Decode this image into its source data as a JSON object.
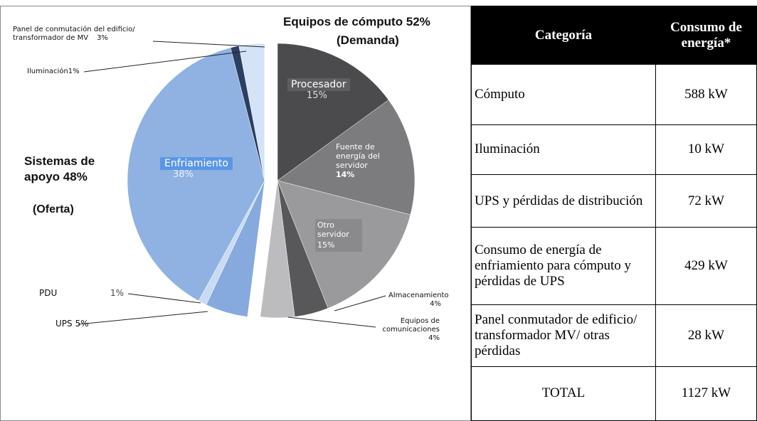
{
  "chart_data": {
    "type": "pie",
    "groups": [
      {
        "label": "Equipos de cómputo 52%",
        "sublabel": "(Demanda)"
      },
      {
        "label": "Sistemas de apoyo 48%",
        "sublabel": "(Oferta)"
      }
    ],
    "categories": [
      "Procesador",
      "Fuente de energía del servidor",
      "Otro servidor",
      "Almacenamiento",
      "Equipos de comunicaciones",
      "UPS",
      "PDU",
      "Enfriamiento",
      "Iluminación",
      "Panel de conmutación del edificio/ transformador de MV"
    ],
    "values": [
      15,
      14,
      15,
      4,
      4,
      5,
      1,
      38,
      1,
      3
    ],
    "value_labels": [
      "15%",
      "14%",
      "15%",
      "4%",
      "4%",
      "5%",
      "1%",
      "38%",
      "1%",
      "3%"
    ],
    "colors": [
      "#4b4b4d",
      "#7c7c7e",
      "#9a9a9c",
      "#58585a",
      "#bcbcbe",
      "#86a9de",
      "#c9daf2",
      "#8fb2e3",
      "#2b3f63",
      "#d4e3f6"
    ]
  },
  "table": {
    "headers": [
      "Categoría",
      "Consumo de energía*"
    ],
    "rows": [
      [
        "Cómputo",
        "588 kW"
      ],
      [
        "Iluminación",
        "10 kW"
      ],
      [
        "UPS y pérdidas de distribución",
        "72 kW"
      ],
      [
        "Consumo de energía de enfriamiento para cómputo y pérdidas de UPS",
        "429 kW"
      ],
      [
        "Panel conmutador de edificio/ transformador MV/ otras pérdidas",
        "28 kW"
      ],
      [
        "TOTAL",
        "1127 kW"
      ]
    ]
  }
}
